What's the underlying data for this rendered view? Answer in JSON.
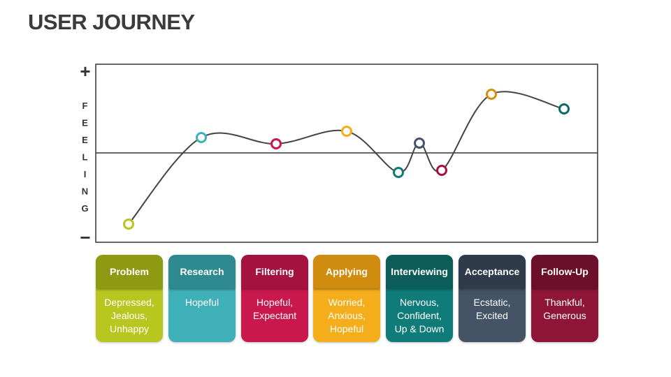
{
  "header": {
    "title": "USER JOURNEY"
  },
  "axis": {
    "top": "+",
    "bottom": "−",
    "label": "FEELING"
  },
  "stages": [
    {
      "name": "Problem",
      "feelings": [
        "Depressed,",
        "Jealous,",
        "Unhappy"
      ]
    },
    {
      "name": "Research",
      "feelings": [
        "Hopeful"
      ]
    },
    {
      "name": "Filtering",
      "feelings": [
        "Hopeful,",
        "Expectant"
      ]
    },
    {
      "name": "Applying",
      "feelings": [
        "Worried,",
        "Anxious,",
        "Hopeful"
      ]
    },
    {
      "name": "Interviewing",
      "feelings": [
        "Nervous,",
        "Confident,",
        "Up & Down"
      ]
    },
    {
      "name": "Acceptance",
      "feelings": [
        "Ecstatic,",
        "Excited"
      ]
    },
    {
      "name": "Follow-Up",
      "feelings": [
        "Thankful,",
        "Generous"
      ]
    }
  ]
}
